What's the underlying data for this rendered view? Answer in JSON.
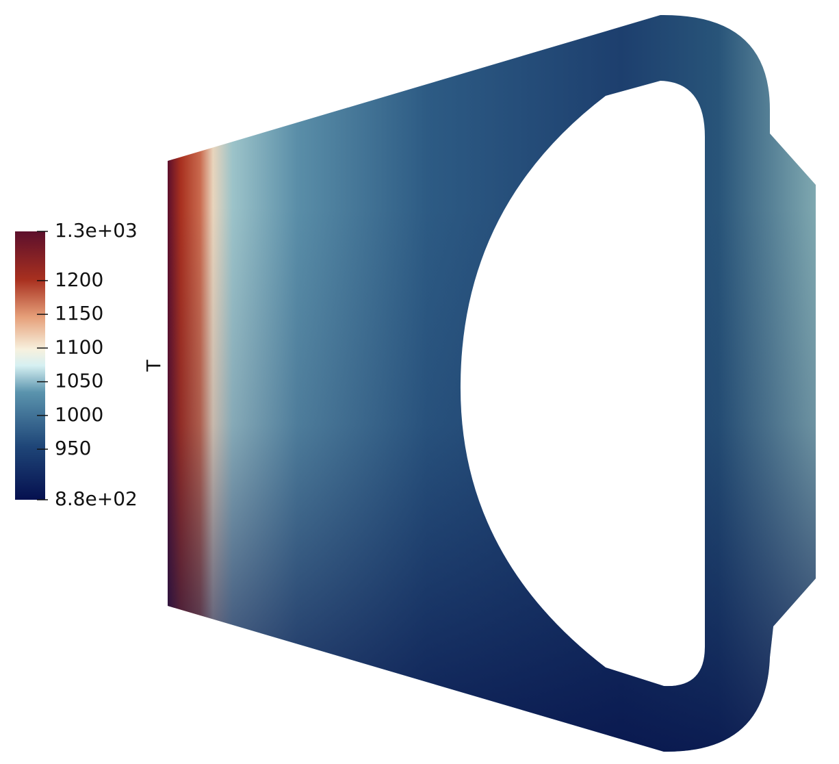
{
  "colorbar": {
    "title": "T",
    "range": [
      {
        "value": 875,
        "label": "8.8e+02"
      },
      {
        "value": 1273,
        "label": "1.3e+03"
      }
    ],
    "ticks": [
      950,
      1000,
      1050,
      1100,
      1150,
      1200
    ]
  }
}
